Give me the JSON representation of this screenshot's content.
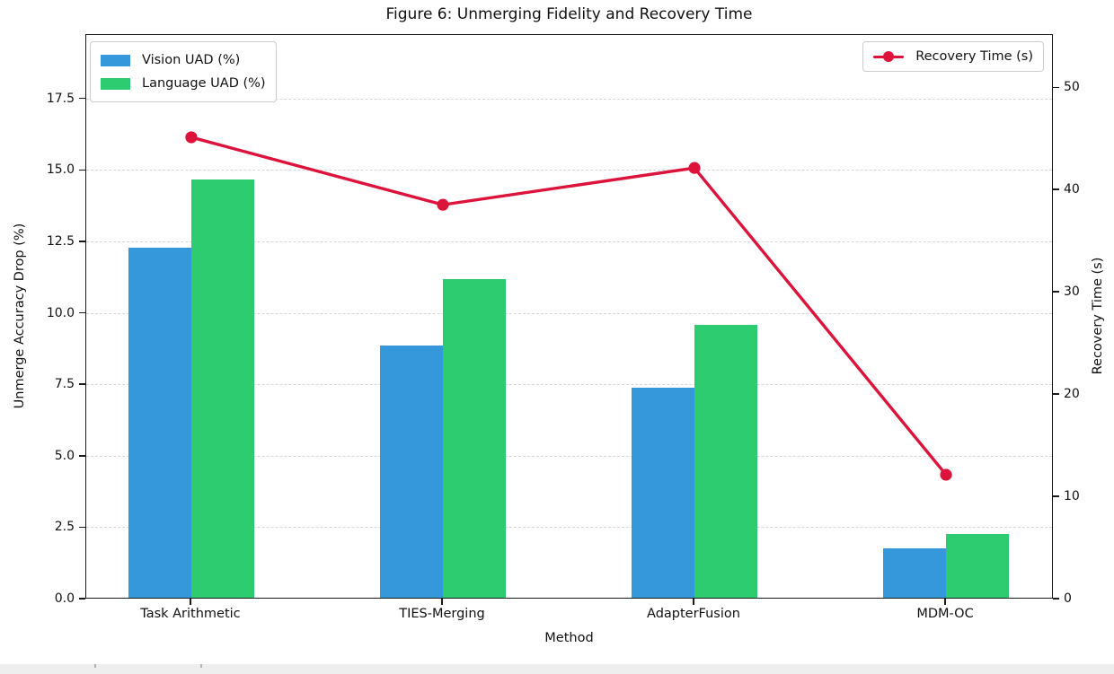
{
  "chart_data": {
    "type": "combo-bar-line",
    "title": "Figure 6: Unmerging Fidelity and Recovery Time",
    "xlabel": "Method",
    "ylabel_left": "Unmerge Accuracy Drop (%)",
    "ylabel_right": "Recovery Time (s)",
    "categories": [
      "Task Arithmetic",
      "TIES-Merging",
      "AdapterFusion",
      "MDM-OC"
    ],
    "bar_series": [
      {
        "name": "Vision UAD (%)",
        "color": "#3498db",
        "values": [
          12.3,
          8.9,
          7.4,
          1.8
        ]
      },
      {
        "name": "Language UAD (%)",
        "color": "#2ecc71",
        "values": [
          14.7,
          11.2,
          9.6,
          2.3
        ]
      }
    ],
    "line_series": [
      {
        "name": "Recovery Time (s)",
        "color": "#dc143c",
        "axis": "right",
        "values": [
          45.2,
          38.6,
          42.2,
          12.2
        ]
      }
    ],
    "axes": {
      "left": {
        "ticks": [
          0.0,
          2.5,
          5.0,
          7.5,
          10.0,
          12.5,
          15.0,
          17.5
        ],
        "tick_labels": [
          "0.0",
          "2.5",
          "5.0",
          "7.5",
          "10.0",
          "12.5",
          "15.0",
          "17.5"
        ],
        "ylim": [
          0,
          19.75
        ]
      },
      "right": {
        "ticks": [
          0,
          10,
          20,
          30,
          40,
          50
        ],
        "tick_labels": [
          "0",
          "10",
          "20",
          "30",
          "40",
          "50"
        ],
        "ylim": [
          0,
          55.2
        ]
      },
      "grid": "horizontal-dashed"
    },
    "legend_left": {
      "position": "upper-left",
      "entries": [
        "Vision UAD (%)",
        "Language UAD (%)"
      ]
    },
    "legend_right": {
      "position": "upper-right",
      "entries": [
        "Recovery Time (s)"
      ]
    }
  }
}
